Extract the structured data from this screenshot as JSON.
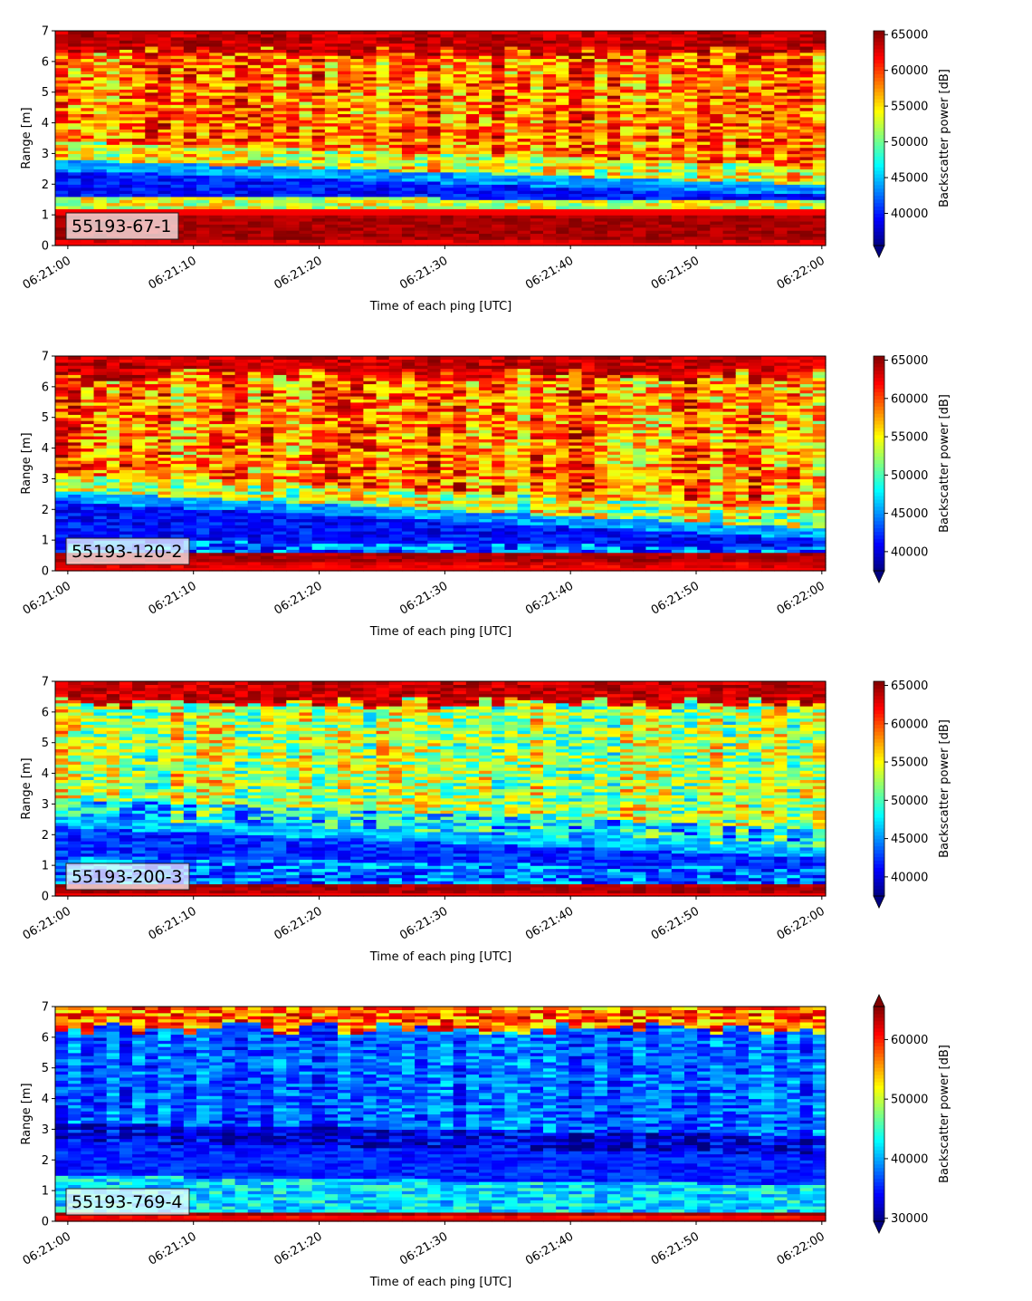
{
  "chart_data": [
    {
      "type": "heatmap",
      "panel_label": "55193-67-1",
      "xlabel": "Time of each ping [UTC]",
      "ylabel": "Range [m]",
      "x_ticks": [
        "06:21:00",
        "06:21:10",
        "06:21:20",
        "06:21:30",
        "06:21:40",
        "06:21:50",
        "06:22:00"
      ],
      "x_range_seconds": [
        -1,
        60.3
      ],
      "y_ticks": [
        0,
        1,
        2,
        3,
        4,
        5,
        6,
        7
      ],
      "ylim": [
        0,
        7
      ],
      "colorbar": {
        "label": "Backscatter power [dB]",
        "ticks": [
          40000,
          45000,
          50000,
          55000,
          60000,
          65000
        ],
        "range": [
          35500,
          65535
        ],
        "extend": "min",
        "colormap": "jet"
      },
      "features": {
        "bottom_band_m": [
          0.25,
          1.05
        ],
        "dark_layer_start_m": [
          1.6,
          2.8
        ],
        "dark_layer_end_m": [
          1.5,
          2.0
        ],
        "dark_layer_level": 37500,
        "upper_level": 58500,
        "upper_noise": 6500,
        "top_band_m": [
          6.3,
          7.0
        ]
      }
    },
    {
      "type": "heatmap",
      "panel_label": "55193-120-2",
      "xlabel": "Time of each ping [UTC]",
      "ylabel": "Range [m]",
      "x_ticks": [
        "06:21:00",
        "06:21:10",
        "06:21:20",
        "06:21:30",
        "06:21:40",
        "06:21:50",
        "06:22:00"
      ],
      "x_range_seconds": [
        -1,
        60.3
      ],
      "y_ticks": [
        0,
        1,
        2,
        3,
        4,
        5,
        6,
        7
      ],
      "ylim": [
        0,
        7
      ],
      "colorbar": {
        "label": "Backscatter power [dB]",
        "ticks": [
          40000,
          45000,
          50000,
          55000,
          60000,
          65000
        ],
        "range": [
          37500,
          65535
        ],
        "extend": "min",
        "colormap": "jet"
      },
      "features": {
        "bottom_band_m": [
          0.3,
          0.6
        ],
        "dark_layer_start_m": [
          1.0,
          2.6
        ],
        "dark_layer_end_m": [
          0.8,
          1.4
        ],
        "dark_layer_level": 39000,
        "upper_level": 58500,
        "upper_noise": 6500,
        "top_band_m": [
          6.4,
          7.0
        ]
      }
    },
    {
      "type": "heatmap",
      "panel_label": "55193-200-3",
      "xlabel": "Time of each ping [UTC]",
      "ylabel": "Range [m]",
      "x_ticks": [
        "06:21:00",
        "06:21:10",
        "06:21:20",
        "06:21:30",
        "06:21:40",
        "06:21:50",
        "06:22:00"
      ],
      "x_range_seconds": [
        -1,
        60.3
      ],
      "y_ticks": [
        0,
        1,
        2,
        3,
        4,
        5,
        6,
        7
      ],
      "ylim": [
        0,
        7
      ],
      "colorbar": {
        "label": "Backscatter power [dB]",
        "ticks": [
          40000,
          45000,
          50000,
          55000,
          60000,
          65000
        ],
        "range": [
          37500,
          65535
        ],
        "extend": "min",
        "colormap": "jet"
      },
      "features": {
        "bottom_band_m": [
          0.15,
          0.45
        ],
        "dark_layer_start_m": [
          1.3,
          2.6
        ],
        "dark_layer_end_m": [
          0.9,
          1.6
        ],
        "dark_layer_level": 40000,
        "upper_level": 53000,
        "upper_noise": 6500,
        "top_band_m": [
          6.3,
          7.0
        ]
      }
    },
    {
      "type": "heatmap",
      "panel_label": "55193-769-4",
      "xlabel": "Time of each ping [UTC]",
      "ylabel": "Range [m]",
      "x_ticks": [
        "06:21:00",
        "06:21:10",
        "06:21:20",
        "06:21:30",
        "06:21:40",
        "06:21:50",
        "06:22:00"
      ],
      "x_range_seconds": [
        -1,
        60.3
      ],
      "y_ticks": [
        0,
        1,
        2,
        3,
        4,
        5,
        6,
        7
      ],
      "ylim": [
        0,
        7
      ],
      "colorbar": {
        "label": "Backscatter power [dB]",
        "ticks": [
          30000,
          40000,
          50000,
          60000
        ],
        "range": [
          29500,
          65535
        ],
        "extend": "both",
        "colormap": "jet"
      },
      "features": {
        "bottom_band_m": [
          0.2,
          0.35
        ],
        "dark_layer_start_m": [
          1.5,
          2.6
        ],
        "dark_layer_end_m": [
          1.2,
          2.2
        ],
        "dark_layer_level": 33000,
        "upper_level": 37500,
        "upper_noise": 5000,
        "top_band_m": [
          6.3,
          6.8
        ]
      }
    }
  ]
}
